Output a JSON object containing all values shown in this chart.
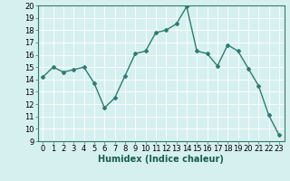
{
  "x": [
    0,
    1,
    2,
    3,
    4,
    5,
    6,
    7,
    8,
    9,
    10,
    11,
    12,
    13,
    14,
    15,
    16,
    17,
    18,
    19,
    20,
    21,
    22,
    23
  ],
  "y": [
    14.2,
    15.0,
    14.6,
    14.8,
    15.0,
    13.7,
    11.7,
    12.5,
    14.3,
    16.1,
    16.3,
    17.8,
    18.0,
    18.5,
    19.9,
    16.3,
    16.1,
    15.1,
    16.8,
    16.3,
    14.9,
    13.5,
    11.1,
    9.5
  ],
  "xlabel": "Humidex (Indice chaleur)",
  "ylim": [
    9,
    20
  ],
  "xlim_min": -0.5,
  "xlim_max": 23.5,
  "yticks": [
    9,
    10,
    11,
    12,
    13,
    14,
    15,
    16,
    17,
    18,
    19,
    20
  ],
  "xticks": [
    0,
    1,
    2,
    3,
    4,
    5,
    6,
    7,
    8,
    9,
    10,
    11,
    12,
    13,
    14,
    15,
    16,
    17,
    18,
    19,
    20,
    21,
    22,
    23
  ],
  "line_color": "#2e7d6e",
  "marker": "D",
  "marker_size": 2.0,
  "line_width": 1.0,
  "bg_color": "#d6f0f0",
  "grid_color": "#ffffff",
  "xlabel_fontsize": 7,
  "tick_fontsize": 6,
  "fig_width": 3.2,
  "fig_height": 2.0,
  "dpi": 100
}
